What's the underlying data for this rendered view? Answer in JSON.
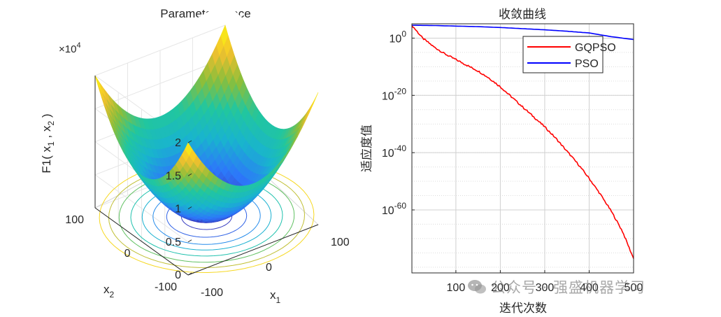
{
  "chart_data": [
    {
      "type": "surface",
      "title": "Parameter space",
      "function": "x1^2 + x2^2",
      "zlabel": "F1( x1 , x2 )",
      "xlabel": "x1",
      "ylabel": "x2",
      "xlim": [
        -100,
        100
      ],
      "ylim": [
        -100,
        100
      ],
      "zlim": [
        0,
        20000
      ],
      "z_multiplier": "×10^4",
      "z_ticks": [
        "0",
        "0.5",
        "1",
        "1.5",
        "2"
      ],
      "x_ticks": [
        "-100",
        "0",
        "100"
      ],
      "y_ticks": [
        "-100",
        "0",
        "100"
      ],
      "contour_levels": [
        1000,
        2500,
        4500,
        6500,
        9000,
        12000,
        15000,
        18000
      ],
      "colormap": [
        "#3e26a8",
        "#2d77fa",
        "#19b4ce",
        "#21c69f",
        "#8cbe3a",
        "#f4c02e",
        "#f9fb0e"
      ]
    },
    {
      "type": "line",
      "title": "收敛曲线",
      "xlabel": "迭代次数",
      "ylabel": "适应度值",
      "yscale": "log",
      "xlim": [
        1,
        500
      ],
      "ylim": [
        -82,
        5
      ],
      "x_ticks": [
        "100",
        "200",
        "300",
        "400",
        "500"
      ],
      "x_tick_values": [
        100,
        200,
        300,
        400,
        500
      ],
      "y_ticks": [
        {
          "base": "10",
          "exp": "0",
          "value": 0
        },
        {
          "base": "10",
          "exp": "-20",
          "value": -20
        },
        {
          "base": "10",
          "exp": "-40",
          "value": -40
        },
        {
          "base": "10",
          "exp": "-60",
          "value": -60
        }
      ],
      "legend_position": "top-right",
      "series": [
        {
          "name": "GQPSO",
          "color": "#ff0000",
          "x": [
            1,
            25,
            50,
            75,
            100,
            125,
            150,
            175,
            200,
            225,
            250,
            275,
            300,
            325,
            350,
            375,
            400,
            425,
            450,
            475,
            500
          ],
          "log10_y": [
            4.5,
            0,
            -3,
            -5.5,
            -7.5,
            -9.5,
            -11.5,
            -14,
            -17,
            -20.5,
            -24,
            -27.5,
            -31,
            -35,
            -39.5,
            -44,
            -49,
            -54.5,
            -60.5,
            -67.5,
            -77
          ]
        },
        {
          "name": "PSO",
          "color": "#0000ff",
          "x": [
            1,
            50,
            100,
            150,
            200,
            250,
            300,
            350,
            400,
            450,
            500
          ],
          "log10_y": [
            4.5,
            4.4,
            4.2,
            4.0,
            3.7,
            3.3,
            2.9,
            2.4,
            1.8,
            0.5,
            -0.5
          ]
        }
      ]
    }
  ],
  "watermark": {
    "text": "公众号 · 强盛机器学习",
    "icon": "wechat-icon"
  }
}
